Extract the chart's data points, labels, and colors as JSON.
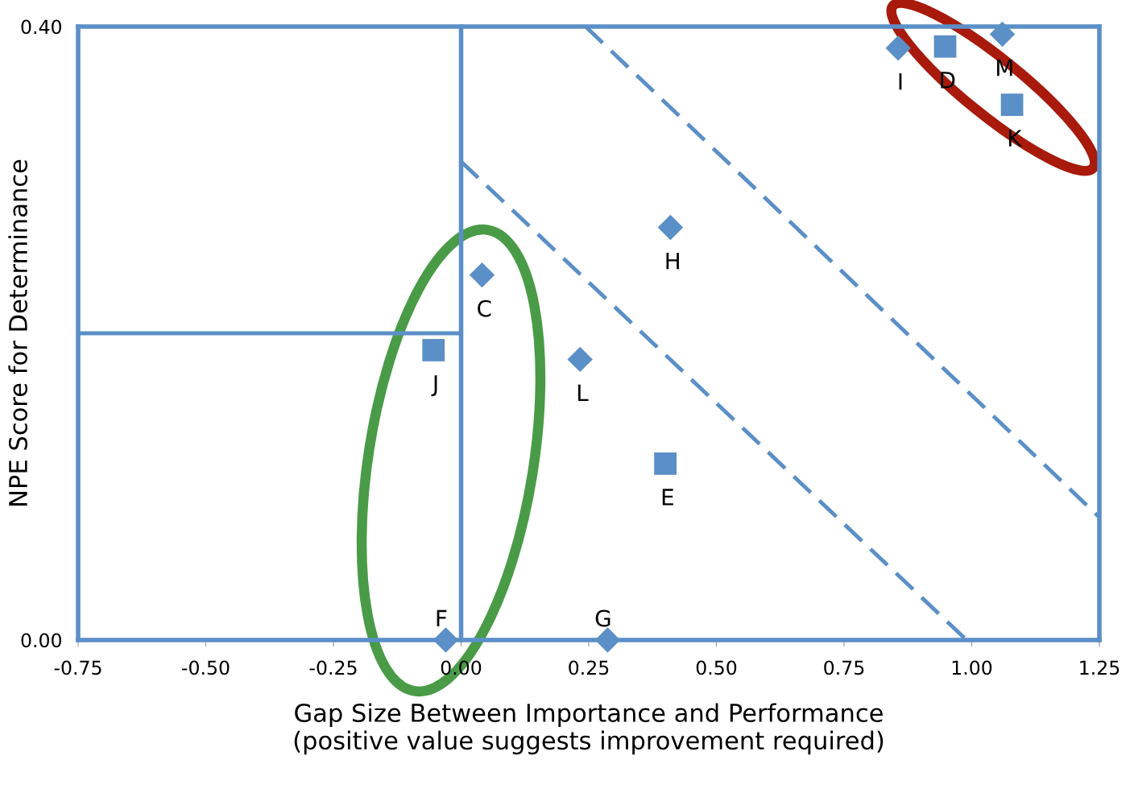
{
  "chart_data": {
    "type": "scatter",
    "xlabel": "Gap Size Between Importance and Performance\n(positive value suggests improvement required)",
    "ylabel": "NPE Score for Determinance",
    "xlim": [
      -0.75,
      1.25
    ],
    "ylim": [
      0,
      0.4
    ],
    "xticks": [
      {
        "value": -0.75,
        "label": "-0.75"
      },
      {
        "value": -0.5,
        "label": "-0.50"
      },
      {
        "value": -0.25,
        "label": "-0.25"
      },
      {
        "value": 0,
        "label": "0.00"
      },
      0.25,
      {
        "value": 0.5,
        "label": "0.50"
      },
      0.75,
      {
        "value": 1,
        "label": "1.00"
      },
      1.25
    ],
    "yticks": [
      {
        "value": 0,
        "label": "0.00"
      },
      {
        "value": 0.4,
        "label": "0.40"
      }
    ],
    "grid": false,
    "legend": false,
    "ref_lines": [
      {
        "axis": "x",
        "value": 0,
        "color": "#5b8fc7",
        "line_style": "solid"
      },
      {
        "axis": "x",
        "value": -0.75,
        "color": "#5b8fc7",
        "line_style": "solid"
      },
      {
        "axis": "x",
        "value": 1.25,
        "color": "#5b8fc7",
        "line_style": "solid"
      },
      {
        "axis": "y",
        "value": 0,
        "color": "#5b8fc7",
        "line_style": "solid"
      },
      {
        "axis": "y",
        "value": 0.4,
        "color": "#5b8fc7",
        "line_style": "solid"
      }
    ],
    "series": [
      {
        "marker": "diamond",
        "color": "#5b8fc7",
        "x": [
          0.856,
          1.06,
          0.41,
          0.041,
          0.233,
          -0.03,
          0.287
        ],
        "values": [
          0.386,
          0.395,
          0.269,
          0.238,
          0.183,
          0,
          0
        ]
      },
      {
        "marker": "square",
        "color": "#5b8fc7",
        "x": [
          0.948,
          1.079,
          -0.054,
          0.4
        ],
        "values": [
          0.387,
          0.349,
          0.189,
          0.115
        ]
      },
      {
        "type": "line",
        "line_style": "solid",
        "marker": "none",
        "color": "#5b8fc7",
        "x": [
          -0.75,
          0
        ],
        "values": [
          0.2,
          0.2
        ]
      },
      {
        "type": "line",
        "line_style": "dashed",
        "marker": "none",
        "color": "#5b8fc7",
        "x": [
          0,
          0.99
        ],
        "values": [
          0.312,
          0
        ]
      },
      {
        "type": "line",
        "line_style": "dashed",
        "marker": "none",
        "color": "#5b8fc7",
        "x": [
          0.244,
          1.25
        ],
        "values": [
          0.4,
          0.08
        ]
      }
    ],
    "annotations": [
      {
        "text": "I",
        "x": 0.856,
        "y": 0.386
      },
      {
        "text": "D",
        "x": 0.948,
        "y": 0.387
      },
      {
        "text": "M",
        "x": 1.06,
        "y": 0.395
      },
      {
        "text": "K",
        "x": 1.079,
        "y": 0.349
      },
      {
        "text": "H",
        "x": 0.41,
        "y": 0.269
      },
      {
        "text": "C",
        "x": 0.041,
        "y": 0.238
      },
      {
        "text": "J",
        "x": -0.054,
        "y": 0.189
      },
      {
        "text": "L",
        "x": 0.233,
        "y": 0.183
      },
      {
        "text": "E",
        "x": 0.4,
        "y": 0.115
      },
      {
        "text": "F",
        "x": -0.03,
        "y": 0
      },
      {
        "text": "G",
        "x": 0.287,
        "y": 0
      }
    ]
  }
}
